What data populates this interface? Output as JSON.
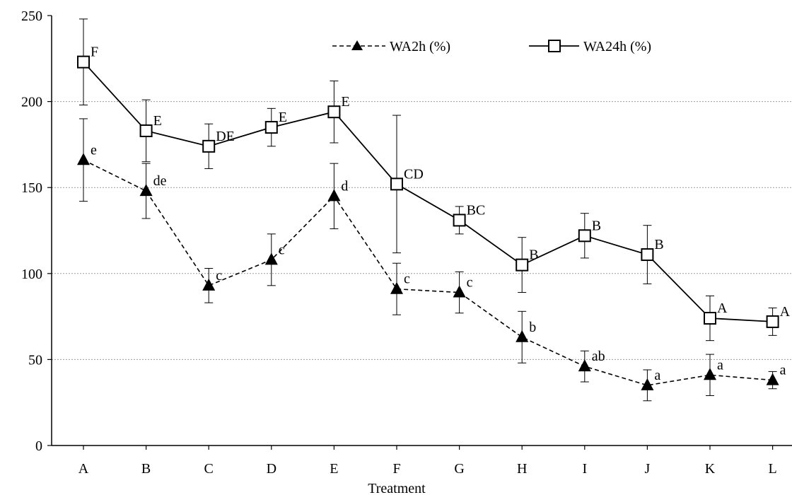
{
  "chart_data": {
    "type": "line",
    "title": "",
    "xlabel": "Treatment",
    "ylabel": "",
    "ylim": [
      0,
      250
    ],
    "yticks": [
      0,
      50,
      100,
      150,
      200,
      250
    ],
    "grid": "horizontal dashed",
    "legend_position": "top",
    "categories": [
      "A",
      "B",
      "C",
      "D",
      "E",
      "F",
      "G",
      "H",
      "I",
      "J",
      "K",
      "L"
    ],
    "series": [
      {
        "name": "WA2h (%)",
        "marker": "filled-triangle",
        "line_style": "dashed",
        "color": "#000000",
        "values": [
          166,
          148,
          93,
          108,
          145,
          91,
          89,
          63,
          46,
          35,
          41,
          38
        ],
        "error": [
          24,
          16,
          10,
          15,
          19,
          15,
          12,
          15,
          9,
          9,
          12,
          5
        ],
        "sig_labels": [
          "e",
          "de",
          "c",
          "c",
          "d",
          "c",
          "c",
          "b",
          "ab",
          "a",
          "a",
          "a"
        ]
      },
      {
        "name": "WA24h (%)",
        "marker": "open-square",
        "line_style": "solid",
        "color": "#000000",
        "values": [
          223,
          183,
          174,
          185,
          194,
          152,
          131,
          105,
          122,
          111,
          74,
          72
        ],
        "error": [
          25,
          18,
          13,
          11,
          18,
          40,
          8,
          16,
          13,
          17,
          13,
          8
        ],
        "sig_labels": [
          "F",
          "E",
          "DE",
          "E",
          "E",
          "CD",
          "BC",
          "B",
          "B",
          "B",
          "A",
          "A"
        ]
      }
    ]
  }
}
